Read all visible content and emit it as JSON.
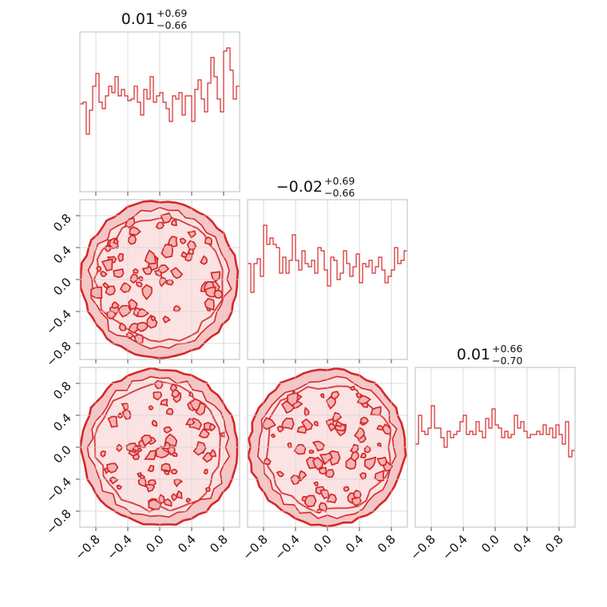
{
  "chart_data": {
    "type": "corner",
    "color": "#d62728",
    "grid_color": "#d2d2d2",
    "frame_color": "#bdbdbd",
    "grid": true,
    "range": [
      -1,
      1
    ],
    "ticks": [
      -0.8,
      -0.4,
      0.0,
      0.4,
      0.8
    ],
    "tick_labels": [
      "−0.8",
      "−0.4",
      "0.0",
      "0.4",
      "0.8"
    ],
    "parameters": [
      {
        "title": {
          "median": "0.01",
          "plus": "+0.69",
          "minus": "−0.66"
        },
        "hist": [
          0.55,
          0.56,
          0.36,
          0.51,
          0.66,
          0.74,
          0.56,
          0.52,
          0.6,
          0.66,
          0.62,
          0.72,
          0.6,
          0.64,
          0.6,
          0.57,
          0.58,
          0.66,
          0.56,
          0.48,
          0.64,
          0.58,
          0.72,
          0.56,
          0.6,
          0.62,
          0.56,
          0.52,
          0.44,
          0.6,
          0.58,
          0.62,
          0.48,
          0.6,
          0.6,
          0.44,
          0.64,
          0.7,
          0.58,
          0.5,
          0.68,
          0.84,
          0.72,
          0.58,
          0.5,
          0.88,
          0.9,
          0.76,
          0.58,
          0.66
        ]
      },
      {
        "title": {
          "median": "−0.02",
          "plus": "+0.69",
          "minus": "−0.66"
        },
        "hist": [
          0.6,
          0.42,
          0.6,
          0.63,
          0.52,
          0.84,
          0.72,
          0.76,
          0.72,
          0.7,
          0.54,
          0.64,
          0.54,
          0.62,
          0.78,
          0.62,
          0.56,
          0.68,
          0.6,
          0.58,
          0.62,
          0.54,
          0.7,
          0.68,
          0.56,
          0.46,
          0.64,
          0.62,
          0.5,
          0.54,
          0.68,
          0.6,
          0.52,
          0.58,
          0.66,
          0.48,
          0.6,
          0.58,
          0.62,
          0.54,
          0.58,
          0.64,
          0.56,
          0.48,
          0.52,
          0.56,
          0.7,
          0.6,
          0.62,
          0.68
        ]
      },
      {
        "title": {
          "median": "0.01",
          "plus": "+0.66",
          "minus": "−0.70"
        },
        "hist": [
          0.52,
          0.7,
          0.6,
          0.58,
          0.62,
          0.76,
          0.62,
          0.62,
          0.56,
          0.5,
          0.6,
          0.56,
          0.58,
          0.6,
          0.66,
          0.7,
          0.58,
          0.6,
          0.58,
          0.66,
          0.6,
          0.56,
          0.68,
          0.62,
          0.74,
          0.64,
          0.62,
          0.56,
          0.6,
          0.56,
          0.58,
          0.7,
          0.62,
          0.66,
          0.6,
          0.56,
          0.58,
          0.58,
          0.6,
          0.58,
          0.64,
          0.58,
          0.62,
          0.56,
          0.64,
          0.58,
          0.52,
          0.66,
          0.44,
          0.48
        ]
      }
    ],
    "panels": [
      {
        "row": 0,
        "col": 0,
        "kind": "hist",
        "param": 0
      },
      {
        "row": 1,
        "col": 0,
        "kind": "contour",
        "seed": 11
      },
      {
        "row": 1,
        "col": 1,
        "kind": "hist",
        "param": 1
      },
      {
        "row": 2,
        "col": 0,
        "kind": "contour",
        "seed": 23
      },
      {
        "row": 2,
        "col": 1,
        "kind": "contour",
        "seed": 37
      },
      {
        "row": 2,
        "col": 2,
        "kind": "hist",
        "param": 2
      }
    ]
  }
}
